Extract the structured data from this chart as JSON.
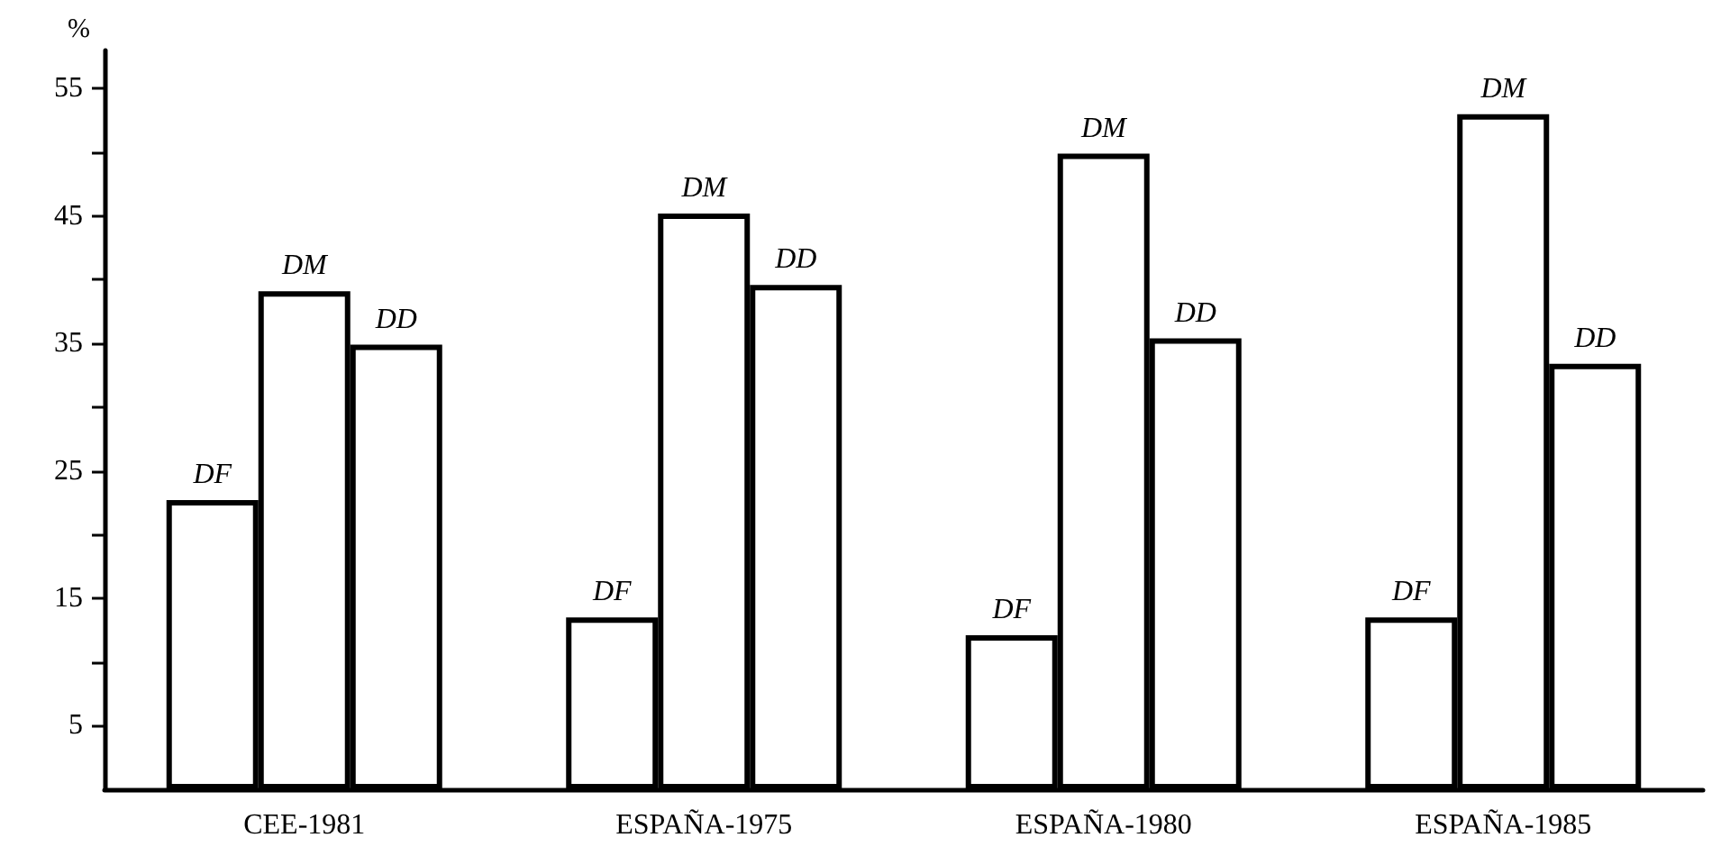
{
  "chart_data": {
    "type": "bar",
    "ylabel": "%",
    "categories": [
      "CEE-1981",
      "ESPAÑA-1975",
      "ESPAÑA-1980",
      "ESPAÑA-1985"
    ],
    "series": [
      {
        "name": "DF",
        "color": "#ffffff",
        "values": [
          22.7,
          13.5,
          12.1,
          13.5
        ]
      },
      {
        "name": "DM",
        "color": "#ffffff",
        "values": [
          39.1,
          45.2,
          49.9,
          53.0
        ]
      },
      {
        "name": "DD",
        "color": "#ffffff",
        "values": [
          34.9,
          39.6,
          35.4,
          33.4
        ]
      }
    ],
    "ylim": [
      0,
      58
    ],
    "yticks": [
      5,
      {
        "value": 10,
        "label": null
      },
      15,
      {
        "value": 20,
        "label": null
      },
      25,
      {
        "value": 30,
        "label": null
      },
      35,
      {
        "value": 40,
        "label": null
      },
      45,
      {
        "value": 50,
        "label": null
      },
      55
    ],
    "grid": false,
    "legend": false
  }
}
